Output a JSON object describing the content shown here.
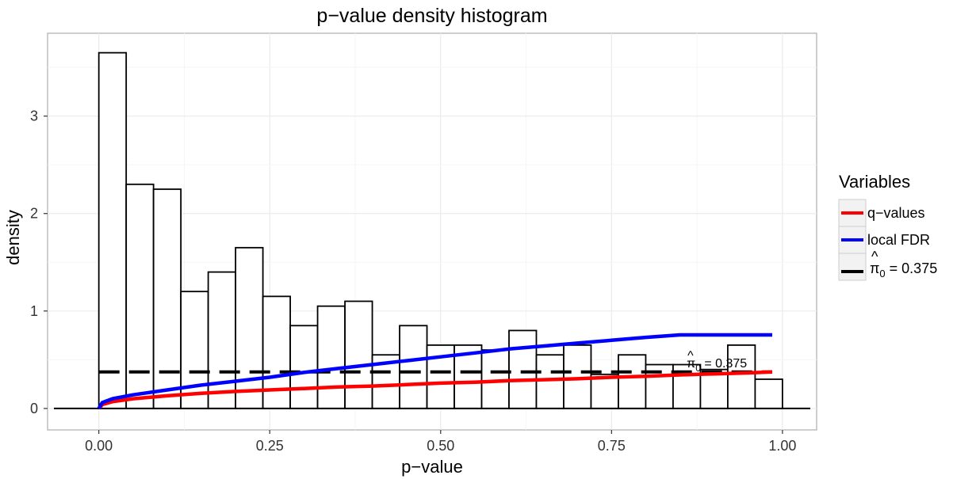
{
  "chart_data": {
    "type": "bar",
    "title": "p−value density histogram",
    "xlabel": "p−value",
    "ylabel": "density",
    "xlim": [
      -0.075,
      1.05
    ],
    "ylim": [
      -0.22,
      3.85
    ],
    "x_ticks": [
      0.0,
      0.25,
      0.5,
      0.75,
      1.0
    ],
    "x_tick_labels": [
      "0.00",
      "0.25",
      "0.50",
      "0.75",
      "1.00"
    ],
    "y_ticks": [
      0,
      1,
      2,
      3
    ],
    "y_tick_labels": [
      "0",
      "1",
      "2",
      "3"
    ],
    "grid": true,
    "bin_width": 0.04,
    "bins": [
      {
        "x0": 0.0,
        "x1": 0.04,
        "density": 3.65
      },
      {
        "x0": 0.04,
        "x1": 0.08,
        "density": 2.3
      },
      {
        "x0": 0.08,
        "x1": 0.12,
        "density": 2.25
      },
      {
        "x0": 0.12,
        "x1": 0.16,
        "density": 1.2
      },
      {
        "x0": 0.16,
        "x1": 0.2,
        "density": 1.4
      },
      {
        "x0": 0.2,
        "x1": 0.24,
        "density": 1.65
      },
      {
        "x0": 0.24,
        "x1": 0.28,
        "density": 1.15
      },
      {
        "x0": 0.28,
        "x1": 0.32,
        "density": 0.85
      },
      {
        "x0": 0.32,
        "x1": 0.36,
        "density": 1.05
      },
      {
        "x0": 0.36,
        "x1": 0.4,
        "density": 1.1
      },
      {
        "x0": 0.4,
        "x1": 0.44,
        "density": 0.55
      },
      {
        "x0": 0.44,
        "x1": 0.48,
        "density": 0.85
      },
      {
        "x0": 0.48,
        "x1": 0.52,
        "density": 0.65
      },
      {
        "x0": 0.52,
        "x1": 0.56,
        "density": 0.65
      },
      {
        "x0": 0.56,
        "x1": 0.6,
        "density": 0.6
      },
      {
        "x0": 0.6,
        "x1": 0.64,
        "density": 0.8
      },
      {
        "x0": 0.64,
        "x1": 0.68,
        "density": 0.55
      },
      {
        "x0": 0.68,
        "x1": 0.72,
        "density": 0.65
      },
      {
        "x0": 0.72,
        "x1": 0.76,
        "density": 0.35
      },
      {
        "x0": 0.76,
        "x1": 0.8,
        "density": 0.55
      },
      {
        "x0": 0.8,
        "x1": 0.84,
        "density": 0.45
      },
      {
        "x0": 0.84,
        "x1": 0.88,
        "density": 0.45
      },
      {
        "x0": 0.88,
        "x1": 0.92,
        "density": 0.4
      },
      {
        "x0": 0.92,
        "x1": 0.96,
        "density": 0.65
      },
      {
        "x0": 0.96,
        "x1": 1.0,
        "density": 0.3
      }
    ],
    "series": [
      {
        "name": "q−values",
        "color": "#ff0000",
        "x": [
          0.0,
          0.005,
          0.02,
          0.05,
          0.1,
          0.15,
          0.2,
          0.25,
          0.3,
          0.35,
          0.4,
          0.45,
          0.5,
          0.55,
          0.6,
          0.65,
          0.7,
          0.75,
          0.8,
          0.85,
          0.9,
          0.95,
          0.985
        ],
        "y": [
          0.0,
          0.04,
          0.07,
          0.1,
          0.13,
          0.155,
          0.175,
          0.19,
          0.205,
          0.22,
          0.23,
          0.245,
          0.26,
          0.27,
          0.285,
          0.295,
          0.305,
          0.32,
          0.33,
          0.345,
          0.355,
          0.365,
          0.375
        ]
      },
      {
        "name": "local FDR",
        "color": "#0000ff",
        "x": [
          0.0,
          0.005,
          0.02,
          0.05,
          0.1,
          0.15,
          0.2,
          0.25,
          0.3,
          0.35,
          0.4,
          0.45,
          0.5,
          0.55,
          0.6,
          0.65,
          0.7,
          0.75,
          0.8,
          0.85,
          0.9,
          0.95,
          0.985
        ],
        "y": [
          0.0,
          0.06,
          0.1,
          0.14,
          0.19,
          0.24,
          0.28,
          0.32,
          0.37,
          0.41,
          0.45,
          0.49,
          0.53,
          0.57,
          0.61,
          0.64,
          0.67,
          0.7,
          0.73,
          0.755,
          0.755,
          0.755,
          0.755
        ]
      },
      {
        "name": "π̂₀ = 0.375",
        "color": "#000000",
        "dashed": true,
        "x": [
          0.0,
          0.985
        ],
        "y": [
          0.375,
          0.375
        ]
      }
    ],
    "baseline": 0,
    "annotation": {
      "pi_symbol": "π",
      "hat": "^",
      "subscript": "0",
      "eq_text": " = 0.375",
      "x": 0.86,
      "y": 0.47
    },
    "legend": {
      "title": "Variables",
      "position": "right",
      "items": [
        {
          "label": "q−values",
          "color": "#ff0000"
        },
        {
          "label": "local FDR",
          "color": "#0000ff"
        },
        {
          "pi_symbol": "π",
          "hat": "^",
          "subscript": "0",
          "eq_text": " = 0.375",
          "color": "#000000"
        }
      ]
    }
  }
}
